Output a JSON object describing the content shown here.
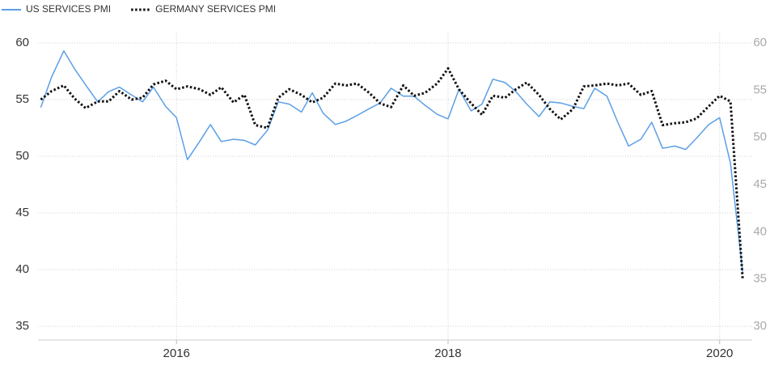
{
  "chart_data": {
    "type": "line",
    "x": [
      2015,
      2015.08,
      2015.17,
      2015.25,
      2015.33,
      2015.42,
      2015.5,
      2015.58,
      2015.67,
      2015.75,
      2015.83,
      2015.92,
      2016,
      2016.08,
      2016.17,
      2016.25,
      2016.33,
      2016.42,
      2016.5,
      2016.58,
      2016.67,
      2016.75,
      2016.83,
      2016.92,
      2017,
      2017.08,
      2017.17,
      2017.25,
      2017.33,
      2017.42,
      2017.5,
      2017.58,
      2017.67,
      2017.75,
      2017.83,
      2017.92,
      2018,
      2018.08,
      2018.17,
      2018.25,
      2018.33,
      2018.42,
      2018.5,
      2018.58,
      2018.67,
      2018.75,
      2018.83,
      2018.92,
      2019,
      2019.08,
      2019.17,
      2019.25,
      2019.33,
      2019.42,
      2019.5,
      2019.58,
      2019.67,
      2019.75,
      2019.83,
      2019.92,
      2020,
      2020.08,
      2020.17
    ],
    "series": [
      {
        "name": "US SERVICES PMI",
        "color": "#5b9fe6",
        "style": "solid",
        "values": [
          54.3,
          57,
          59.3,
          57.7,
          56.3,
          54.8,
          55.7,
          56.1,
          55.4,
          54.8,
          56.1,
          54.4,
          53.4,
          49.7,
          51.3,
          52.8,
          51.3,
          51.5,
          51.4,
          51,
          52.3,
          54.8,
          54.6,
          53.9,
          55.6,
          53.8,
          52.8,
          53.1,
          53.6,
          54.2,
          54.7,
          56,
          55.3,
          55.3,
          54.5,
          53.7,
          53.3,
          55.9,
          54,
          54.6,
          56.8,
          56.5,
          55.7,
          54.6,
          53.5,
          54.8,
          54.7,
          54.4,
          54.2,
          56,
          55.3,
          53,
          50.9,
          51.5,
          53,
          50.7,
          50.9,
          50.6,
          51.6,
          52.8,
          53.4,
          49.4,
          39.8
        ]
      },
      {
        "name": "GERMANY SERVICES PMI",
        "color": "#111111",
        "style": "dotted",
        "axis": "y2",
        "values": [
          54,
          54.9,
          55.5,
          54.1,
          53.1,
          53.8,
          53.8,
          54.9,
          54,
          54.2,
          55.6,
          56,
          55.1,
          55.4,
          55.1,
          54.5,
          55.3,
          53.7,
          54.5,
          51.3,
          51,
          54.2,
          55.1,
          54.5,
          53.7,
          54.2,
          55.7,
          55.5,
          55.7,
          54.7,
          53.6,
          53.2,
          55.5,
          54.4,
          54.7,
          55.7,
          57.3,
          55.1,
          53.6,
          52.4,
          54.4,
          54.2,
          55.1,
          55.8,
          54.5,
          53,
          51.9,
          53,
          55.4,
          55.5,
          55.7,
          55.5,
          55.7,
          54.5,
          54.9,
          51.3,
          51.5,
          51.6,
          52,
          53.3,
          54.4,
          53.8,
          35
        ]
      }
    ],
    "xlim": [
      2014.98,
      2020.24
    ],
    "xticks": [
      2016,
      2018,
      2020
    ],
    "ylim": [
      35,
      60
    ],
    "yticks": [
      35,
      40,
      45,
      50,
      55,
      60
    ],
    "y2lim": [
      30,
      60
    ],
    "y2ticks": [
      30,
      35,
      40,
      45,
      50,
      55,
      60
    ],
    "grid": true,
    "legend": "top-left"
  }
}
